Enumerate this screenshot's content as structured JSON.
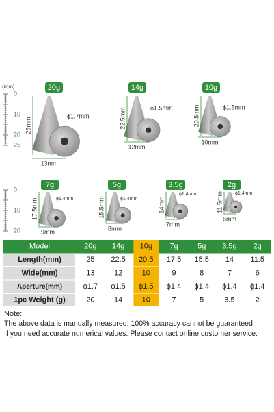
{
  "ruler_top": {
    "unit": "(mm)",
    "labels": [
      "0",
      "10",
      "20",
      "25"
    ]
  },
  "ruler_bottom": {
    "labels": [
      "0",
      "10",
      "20"
    ]
  },
  "weights": [
    {
      "label": "20g",
      "length": "25mm",
      "aperture": "ϕ1.7mm",
      "width": "13mm"
    },
    {
      "label": "14g",
      "length": "22.5mm",
      "aperture": "ϕ1.5mm",
      "width": "12mm"
    },
    {
      "label": "10g",
      "length": "20.5mm",
      "aperture": "ϕ1.5mm",
      "width": "10mm"
    },
    {
      "label": "7g",
      "length": "17.5mm",
      "aperture": "ϕ1.4mm",
      "width": "9mm"
    },
    {
      "label": "5g",
      "length": "15.5mm",
      "aperture": "ϕ1.4mm",
      "width": "8mm"
    },
    {
      "label": "3.5g",
      "length": "14mm",
      "aperture": "ϕ1.4mm",
      "width": "7mm"
    },
    {
      "label": "2g",
      "length": "11.5mm",
      "aperture": "ϕ1.4mm",
      "width": "6mm"
    }
  ],
  "table": {
    "header": [
      "Model",
      "20g",
      "14g",
      "10g",
      "7g",
      "5g",
      "3.5g",
      "2g"
    ],
    "rows": [
      [
        "Length(mm)",
        "25",
        "22.5",
        "20.5",
        "17.5",
        "15.5",
        "14",
        "11.5"
      ],
      [
        "Wide(mm)",
        "13",
        "12",
        "10",
        "9",
        "8",
        "7",
        "6"
      ],
      [
        "Aperture(mm)",
        "ϕ1.7",
        "ϕ1.5",
        "ϕ1.5",
        "ϕ1.4",
        "ϕ1.4",
        "ϕ1.4",
        "ϕ1.4"
      ],
      [
        "1pc Weight (g)",
        "20",
        "14",
        "10",
        "7",
        "5",
        "3.5",
        "2"
      ]
    ]
  },
  "note": {
    "title": "Note:",
    "lines": [
      "The above data is manually measured. 100% accuracy cannot be guaranteed.",
      "If you need accurate numerical values. Please contact online customer service."
    ]
  }
}
